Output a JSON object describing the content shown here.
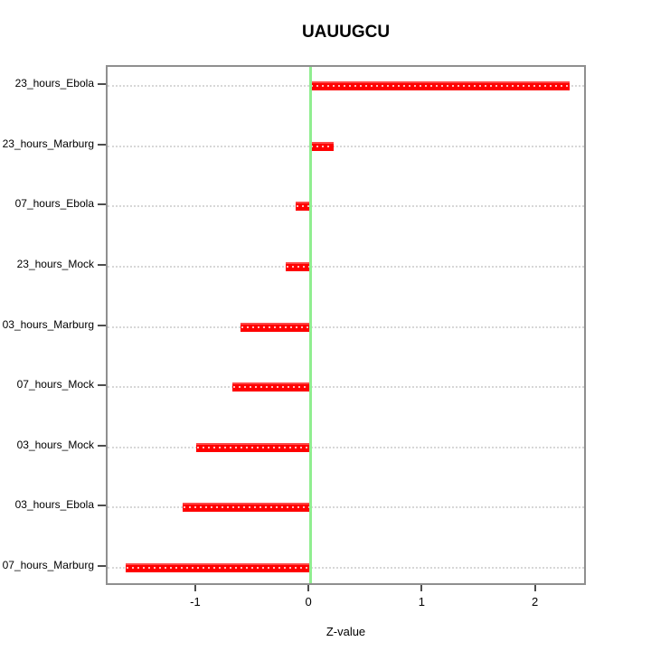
{
  "chart_data": {
    "type": "bar",
    "orientation": "horizontal",
    "title": "UAUUGCU",
    "xlabel": "Z-value",
    "ylabel": "",
    "categories": [
      "23_hours_Ebola",
      "23_hours_Marburg",
      "07_hours_Ebola",
      "23_hours_Mock",
      "03_hours_Marburg",
      "07_hours_Mock",
      "03_hours_Mock",
      "03_hours_Ebola",
      "07_hours_Marburg"
    ],
    "values": [
      2.29,
      0.21,
      -0.13,
      -0.22,
      -0.62,
      -0.69,
      -1.01,
      -1.13,
      -1.63
    ],
    "xlim": [
      -1.79,
      2.45
    ],
    "xticks": [
      -1,
      0,
      1,
      2
    ],
    "xtick_labels": [
      "-1",
      "0",
      "1",
      "2"
    ],
    "zero_reference_line_x": 0,
    "grid": "dotted horizontal line per category, full plot width",
    "legend": "none",
    "colors": {
      "bar": "#ff0000",
      "zero_line": "#90ee90",
      "grid": "#d7d7d7",
      "plot_border": "#8f8f8f",
      "tick": "#4d4d4d",
      "text": "#000000",
      "background": "#ffffff"
    }
  }
}
